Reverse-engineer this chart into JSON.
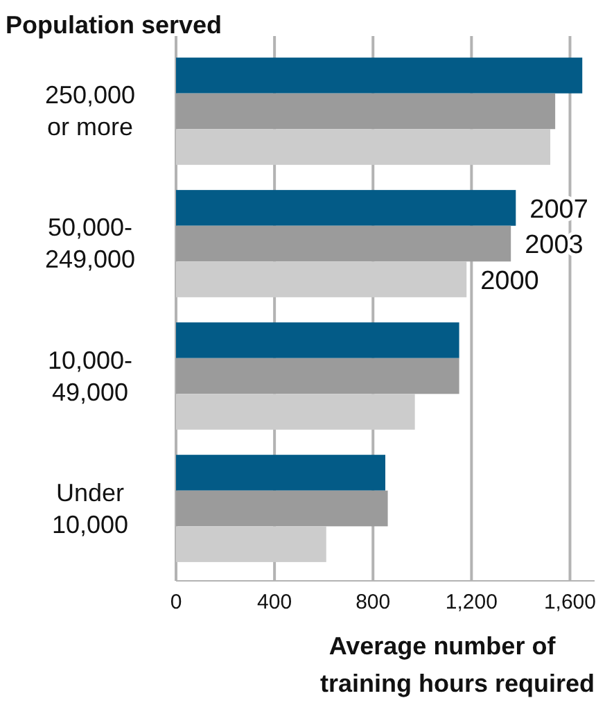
{
  "chart_data": {
    "type": "bar",
    "orientation": "horizontal",
    "title": "Population served",
    "xlabel": "Average number of training hours required",
    "categories": [
      "250,000 or more",
      "50,000-249,000",
      "10,000-49,000",
      "Under 10,000"
    ],
    "series": [
      {
        "name": "2007",
        "color": "#035b87",
        "values": [
          1650,
          1380,
          1150,
          850
        ]
      },
      {
        "name": "2003",
        "color": "#9b9b9b",
        "values": [
          1540,
          1360,
          1150,
          860
        ]
      },
      {
        "name": "2000",
        "color": "#cccccc",
        "values": [
          1520,
          1180,
          970,
          610
        ]
      }
    ],
    "xlim": [
      0,
      1700
    ],
    "xticks": [
      0,
      {
        "value": 400,
        "label": "400"
      },
      {
        "value": 800,
        "label": "800"
      },
      {
        "value": 1200,
        "label": "1,200"
      },
      {
        "value": 1600,
        "label": "1,600"
      }
    ],
    "grid": "x",
    "legend": false
  }
}
